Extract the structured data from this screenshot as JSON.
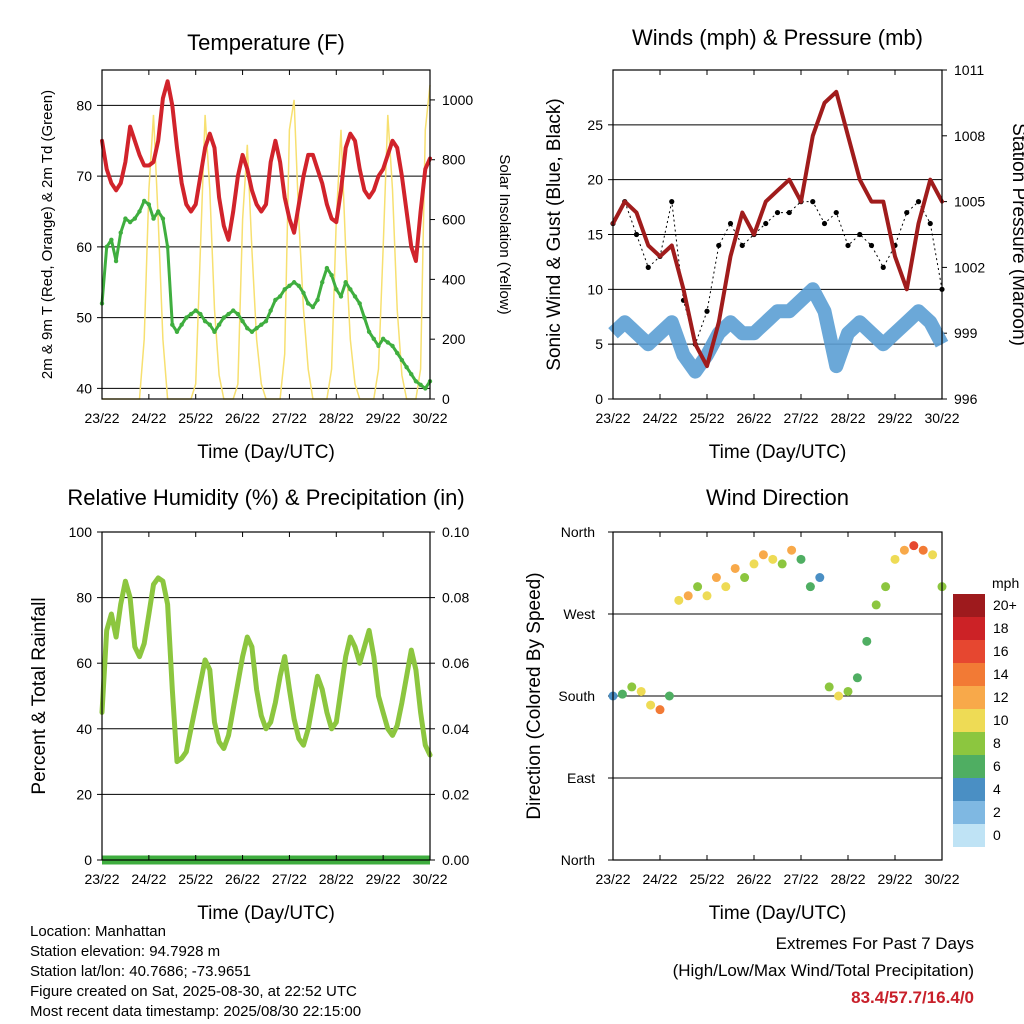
{
  "info": {
    "location": "Location: Manhattan",
    "elevation": "Station elevation: 94.7928 m",
    "latlon": "Station lat/lon: 40.7686; -73.9651",
    "created": "Figure created on Sat, 2025-08-30, at 22:52 UTC",
    "recent": "Most recent data timestamp: 2025/08/30 22:15:00"
  },
  "extremes": {
    "title": "Extremes For Past 7 Days",
    "subtitle": "(High/Low/Max Wind/Total Precipitation)",
    "values": "83.4/57.7/16.4/0"
  },
  "colors": {
    "temperature": "#d1232b",
    "dewpoint": "#3fae3f",
    "insolation": "#f7e070",
    "sonic_wind": "#5b9fd4",
    "gust": "#000000",
    "pressure": "#a01c1c",
    "humidity": "#8cc63f",
    "precip": "#3fae3f"
  },
  "chart_data": [
    {
      "type": "line",
      "title": "Temperature (F)",
      "xlabel": "Time (Day/UTC)",
      "ylabel": "2m & 9m T (Red, Orange) & 2m Td (Green)",
      "ylabel_right": "Solar Insolation (Yellow)",
      "x_ticks": [
        "23/22",
        "24/22",
        "25/22",
        "26/22",
        "27/22",
        "28/22",
        "29/22",
        "30/22"
      ],
      "ylim": [
        38.5,
        85
      ],
      "y_ticks": [
        40,
        50,
        60,
        70,
        80
      ],
      "ylim_right": [
        0,
        1100
      ],
      "y_ticks_right": [
        0,
        200,
        400,
        600,
        800,
        1000
      ],
      "grid": "horizontal",
      "series": [
        {
          "axis": "left",
          "color": "#d1232b",
          "x": [
            0.0,
            0.1,
            0.2,
            0.3,
            0.4,
            0.5,
            0.6,
            0.7,
            0.8,
            0.9,
            1.0,
            1.1,
            1.2,
            1.3,
            1.4,
            1.5,
            1.6,
            1.7,
            1.8,
            1.9,
            2.0,
            2.1,
            2.2,
            2.3,
            2.4,
            2.5,
            2.6,
            2.7,
            2.8,
            2.9,
            3.0,
            3.1,
            3.2,
            3.3,
            3.4,
            3.5,
            3.6,
            3.7,
            3.8,
            3.9,
            4.0,
            4.1,
            4.2,
            4.3,
            4.4,
            4.5,
            4.6,
            4.7,
            4.8,
            4.9,
            5.0,
            5.1,
            5.2,
            5.3,
            5.4,
            5.5,
            5.6,
            5.7,
            5.8,
            5.9,
            6.0,
            6.1,
            6.2,
            6.3,
            6.4,
            6.5,
            6.6,
            6.7,
            6.8,
            6.9,
            7.0
          ],
          "values": [
            75,
            71,
            69,
            68,
            69,
            72,
            77,
            75,
            73,
            71.5,
            71.5,
            72,
            75,
            81,
            83.4,
            80,
            74,
            69,
            66,
            65,
            66,
            70,
            74,
            76,
            74,
            67,
            63,
            61,
            65,
            70,
            73,
            71,
            68,
            66,
            65,
            66,
            72,
            75,
            72,
            67,
            64,
            62,
            66,
            70,
            73,
            73,
            71,
            69,
            66,
            64,
            63.5,
            68,
            74,
            76,
            75,
            71,
            68,
            67,
            68,
            70,
            71,
            73,
            75,
            74,
            70,
            65,
            60,
            58,
            65,
            71,
            72.5
          ]
        },
        {
          "axis": "left",
          "color": "#3fae3f",
          "x": [
            0.0,
            0.1,
            0.2,
            0.3,
            0.4,
            0.5,
            0.6,
            0.7,
            0.8,
            0.9,
            1.0,
            1.1,
            1.2,
            1.3,
            1.4,
            1.5,
            1.6,
            1.7,
            1.8,
            1.9,
            2.0,
            2.1,
            2.2,
            2.3,
            2.4,
            2.5,
            2.6,
            2.7,
            2.8,
            2.9,
            3.0,
            3.1,
            3.2,
            3.3,
            3.4,
            3.5,
            3.6,
            3.7,
            3.8,
            3.9,
            4.0,
            4.1,
            4.2,
            4.3,
            4.4,
            4.5,
            4.6,
            4.7,
            4.8,
            4.9,
            5.0,
            5.1,
            5.2,
            5.3,
            5.4,
            5.5,
            5.6,
            5.7,
            5.8,
            5.9,
            6.0,
            6.1,
            6.2,
            6.3,
            6.4,
            6.5,
            6.6,
            6.7,
            6.8,
            6.9,
            7.0
          ],
          "values": [
            52,
            60,
            61,
            58,
            62,
            64,
            63.5,
            64,
            65,
            66.5,
            66,
            64,
            65,
            64,
            60,
            49,
            48,
            49,
            50,
            50.5,
            51,
            50.5,
            49.5,
            49,
            48,
            49,
            50,
            50.5,
            51,
            50.5,
            49.5,
            48.5,
            48,
            48.5,
            49,
            49.5,
            51,
            52.5,
            53,
            54,
            54.5,
            55,
            54.5,
            53.5,
            52,
            51.5,
            52.5,
            55,
            57,
            56,
            54,
            53,
            55,
            54,
            53,
            52,
            50,
            48,
            47,
            46,
            47,
            46.5,
            46,
            45,
            44,
            43,
            42,
            41,
            40.5,
            40,
            41
          ]
        },
        {
          "axis": "right",
          "color": "#f7e070",
          "x": [
            0.0,
            0.1,
            0.2,
            0.3,
            0.4,
            0.5,
            0.6,
            0.7,
            0.8,
            0.9,
            1.0,
            1.1,
            1.2,
            1.3,
            1.4,
            1.5,
            1.6,
            1.7,
            1.8,
            1.9,
            2.0,
            2.1,
            2.2,
            2.3,
            2.4,
            2.5,
            2.6,
            2.7,
            2.8,
            2.9,
            3.0,
            3.1,
            3.2,
            3.3,
            3.4,
            3.5,
            3.6,
            3.7,
            3.8,
            3.9,
            4.0,
            4.1,
            4.2,
            4.3,
            4.4,
            4.5,
            4.6,
            4.7,
            4.8,
            4.9,
            5.0,
            5.1,
            5.2,
            5.3,
            5.4,
            5.5,
            5.6,
            5.7,
            5.8,
            5.9,
            6.0,
            6.1,
            6.2,
            6.3,
            6.4,
            6.5,
            6.6,
            6.7,
            6.8,
            6.9,
            7.0
          ],
          "values": [
            0,
            0,
            0,
            0,
            0,
            0,
            0,
            0,
            0,
            200,
            700,
            950,
            600,
            200,
            0,
            0,
            0,
            0,
            0,
            0,
            50,
            500,
            950,
            700,
            300,
            80,
            0,
            0,
            0,
            50,
            600,
            850,
            500,
            200,
            50,
            0,
            0,
            0,
            0,
            150,
            900,
            1000,
            600,
            300,
            100,
            0,
            0,
            0,
            0,
            100,
            600,
            900,
            500,
            200,
            50,
            0,
            0,
            0,
            0,
            100,
            500,
            950,
            700,
            300,
            80,
            0,
            0,
            0,
            100,
            900,
            1050
          ]
        }
      ]
    },
    {
      "type": "line",
      "title": "Winds (mph) & Pressure (mb)",
      "xlabel": "Time (Day/UTC)",
      "ylabel": "Sonic Wind & Gust (Blue, Black)",
      "ylabel_right": "Station Pressure (Maroon)",
      "x_ticks": [
        "23/22",
        "24/22",
        "25/22",
        "26/22",
        "27/22",
        "28/22",
        "29/22",
        "30/22"
      ],
      "ylim": [
        0,
        30
      ],
      "y_ticks": [
        0,
        5,
        10,
        15,
        20,
        25
      ],
      "ylim_right": [
        996,
        1011
      ],
      "y_ticks_right": [
        996,
        999,
        1002,
        1005,
        1008,
        1011
      ],
      "grid": "horizontal",
      "series": [
        {
          "name": "gust",
          "axis": "left",
          "color": "#000000",
          "x": [
            0.0,
            0.25,
            0.5,
            0.75,
            1.0,
            1.25,
            1.5,
            1.75,
            2.0,
            2.25,
            2.5,
            2.75,
            3.0,
            3.25,
            3.5,
            3.75,
            4.0,
            4.25,
            4.5,
            4.75,
            5.0,
            5.25,
            5.5,
            5.75,
            6.0,
            6.25,
            6.5,
            6.75,
            7.0
          ],
          "values": [
            16,
            18,
            15,
            12,
            13,
            18,
            9,
            5,
            8,
            14,
            16,
            14,
            15,
            16,
            17,
            17,
            18,
            18,
            16,
            17,
            14,
            15,
            14,
            12,
            14,
            17,
            18,
            16,
            10
          ]
        },
        {
          "name": "sonic wind",
          "axis": "left",
          "color": "#5b9fd4",
          "x": [
            0.0,
            0.25,
            0.5,
            0.75,
            1.0,
            1.25,
            1.5,
            1.75,
            2.0,
            2.25,
            2.5,
            2.75,
            3.0,
            3.25,
            3.5,
            3.75,
            4.0,
            4.25,
            4.5,
            4.75,
            5.0,
            5.25,
            5.5,
            5.75,
            6.0,
            6.25,
            6.5,
            6.75,
            7.0
          ],
          "values": [
            6,
            7,
            6,
            5,
            6,
            7,
            4,
            2.5,
            4,
            6,
            7,
            6,
            6,
            7,
            8,
            8,
            9,
            10,
            8,
            3,
            6,
            7,
            6,
            5,
            6,
            7,
            8,
            7,
            5
          ]
        },
        {
          "name": "pressure",
          "axis": "right",
          "color": "#a01c1c",
          "x": [
            0.0,
            0.25,
            0.5,
            0.75,
            1.0,
            1.25,
            1.5,
            1.75,
            2.0,
            2.25,
            2.5,
            2.75,
            3.0,
            3.25,
            3.5,
            3.75,
            4.0,
            4.25,
            4.5,
            4.75,
            5.0,
            5.25,
            5.5,
            5.75,
            6.0,
            6.25,
            6.5,
            6.75,
            7.0
          ],
          "values": [
            1004,
            1005,
            1004.5,
            1003,
            1002.5,
            1003,
            1001,
            998.5,
            997.5,
            999.5,
            1002.5,
            1004.5,
            1003.5,
            1005,
            1005.5,
            1006,
            1005,
            1008,
            1009.5,
            1010,
            1008,
            1006,
            1005,
            1005,
            1002.5,
            1001,
            1004,
            1006,
            1005
          ]
        }
      ]
    },
    {
      "type": "line",
      "title": "Relative Humidity (%) & Precipitation (in)",
      "xlabel": "Time (Day/UTC)",
      "ylabel": "Percent & Total Rainfall",
      "x_ticks": [
        "23/22",
        "24/22",
        "25/22",
        "26/22",
        "27/22",
        "28/22",
        "29/22",
        "30/22"
      ],
      "ylim": [
        0,
        100
      ],
      "y_ticks": [
        0,
        20,
        40,
        60,
        80,
        100
      ],
      "ylim_right": [
        0,
        0.1
      ],
      "y_ticks_right": [
        "0.00",
        "0.02",
        "0.04",
        "0.06",
        "0.08",
        "0.10"
      ],
      "grid": "horizontal",
      "series": [
        {
          "name": "humidity",
          "axis": "left",
          "color": "#8cc63f",
          "x": [
            0.0,
            0.1,
            0.2,
            0.3,
            0.4,
            0.5,
            0.6,
            0.7,
            0.8,
            0.9,
            1.0,
            1.1,
            1.2,
            1.3,
            1.4,
            1.5,
            1.6,
            1.7,
            1.8,
            1.9,
            2.0,
            2.1,
            2.2,
            2.3,
            2.4,
            2.5,
            2.6,
            2.7,
            2.8,
            2.9,
            3.0,
            3.1,
            3.2,
            3.3,
            3.4,
            3.5,
            3.6,
            3.7,
            3.8,
            3.9,
            4.0,
            4.1,
            4.2,
            4.3,
            4.4,
            4.5,
            4.6,
            4.7,
            4.8,
            4.9,
            5.0,
            5.1,
            5.2,
            5.3,
            5.4,
            5.5,
            5.6,
            5.7,
            5.8,
            5.9,
            6.0,
            6.1,
            6.2,
            6.3,
            6.4,
            6.5,
            6.6,
            6.7,
            6.8,
            6.9,
            7.0
          ],
          "values": [
            45,
            70,
            75,
            68,
            78,
            85,
            80,
            65,
            62,
            66,
            75,
            84,
            86,
            85,
            78,
            52,
            30,
            31,
            33,
            40,
            47,
            54,
            61,
            58,
            42,
            36,
            34,
            38,
            46,
            54,
            62,
            68,
            65,
            52,
            44,
            40,
            42,
            48,
            56,
            62,
            52,
            43,
            37,
            35,
            40,
            48,
            56,
            52,
            45,
            40,
            42,
            52,
            62,
            68,
            65,
            60,
            65,
            70,
            62,
            50,
            45,
            40,
            38,
            41,
            48,
            56,
            64,
            58,
            45,
            35,
            32
          ]
        },
        {
          "name": "precipitation",
          "axis": "right",
          "color": "#3fae3f",
          "x": [
            0,
            1,
            2,
            3,
            4,
            5,
            6,
            7
          ],
          "values": [
            0,
            0,
            0,
            0,
            0,
            0,
            0,
            0
          ]
        }
      ]
    },
    {
      "type": "scatter",
      "title": "Wind Direction",
      "xlabel": "Time (Day/UTC)",
      "ylabel": "Direction (Colored By Speed)",
      "x_ticks": [
        "23/22",
        "24/22",
        "25/22",
        "26/22",
        "27/22",
        "28/22",
        "29/22",
        "30/22"
      ],
      "y_ticks": [
        "North",
        "East",
        "South",
        "West",
        "North"
      ],
      "ylim": [
        0,
        360
      ],
      "grid": "horizontal",
      "legend_title": "mph",
      "legend_labels": [
        "20+",
        "18",
        "16",
        "14",
        "12",
        "10",
        "8",
        "6",
        "4",
        "2",
        "0"
      ],
      "legend_colors": [
        "#9e1a1d",
        "#cc2226",
        "#e64730",
        "#f27a35",
        "#f8a94a",
        "#eedb55",
        "#8cc63f",
        "#4fae62",
        "#4a8fc4",
        "#7fb8e2",
        "#bfe3f5"
      ],
      "x": [
        0.0,
        0.2,
        0.4,
        0.6,
        0.8,
        1.0,
        1.2,
        1.4,
        1.6,
        1.8,
        2.0,
        2.2,
        2.4,
        2.6,
        2.8,
        3.0,
        3.2,
        3.4,
        3.6,
        3.8,
        4.0,
        4.2,
        4.4,
        4.6,
        4.8,
        5.0,
        5.2,
        5.4,
        5.6,
        5.8,
        6.0,
        6.2,
        6.4,
        6.6,
        6.8,
        7.0
      ],
      "values": [
        180,
        182,
        190,
        185,
        170,
        165,
        180,
        285,
        290,
        300,
        290,
        310,
        300,
        320,
        310,
        325,
        335,
        330,
        325,
        340,
        330,
        300,
        310,
        190,
        180,
        185,
        200,
        240,
        280,
        300,
        330,
        340,
        345,
        340,
        335,
        300
      ],
      "speeds": [
        4,
        6,
        8,
        10,
        9,
        14,
        6,
        9,
        12,
        8,
        10,
        12,
        9,
        11,
        8,
        10,
        12,
        10,
        8,
        12,
        6,
        5,
        4,
        7,
        9,
        8,
        6,
        5,
        7,
        8,
        10,
        12,
        16,
        14,
        10,
        8
      ]
    }
  ]
}
